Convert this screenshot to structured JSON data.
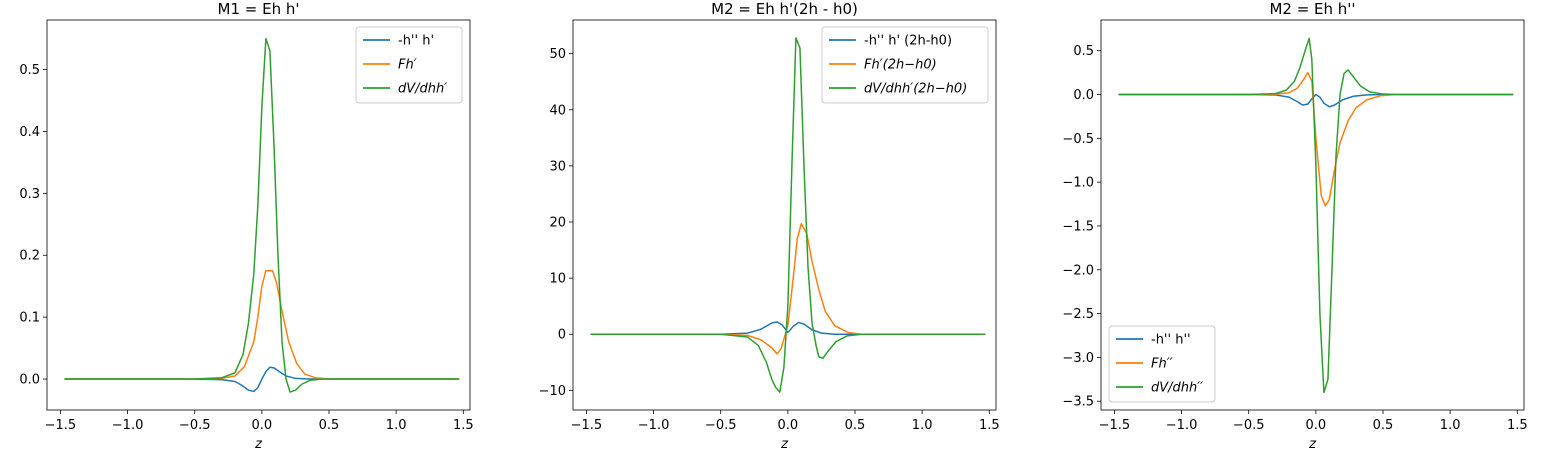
{
  "chart_data": [
    {
      "type": "line",
      "title": "M1 = Eh h'",
      "xlabel": "z",
      "ylabel": "",
      "xlim": [
        -1.6,
        1.55
      ],
      "ylim": [
        -0.05,
        0.58
      ],
      "xticks": [
        -1.5,
        -1.0,
        -0.5,
        0.0,
        0.5,
        1.0,
        1.5
      ],
      "xtick_labels": [
        "−1.5",
        "−1.0",
        "−0.5",
        "0.0",
        "0.5",
        "1.0",
        "1.5"
      ],
      "yticks": [
        0.0,
        0.1,
        0.2,
        0.3,
        0.4,
        0.5
      ],
      "ytick_labels": [
        "0.0",
        "0.1",
        "0.2",
        "0.3",
        "0.4",
        "0.5"
      ],
      "legend_position": "top-right",
      "series": [
        {
          "name": "-h'' h'",
          "italic": false,
          "color": "#1f77b4",
          "points": [
            [
              -1.47,
              0
            ],
            [
              -0.6,
              0
            ],
            [
              -0.3,
              -0.001
            ],
            [
              -0.2,
              -0.004
            ],
            [
              -0.15,
              -0.01
            ],
            [
              -0.1,
              -0.018
            ],
            [
              -0.06,
              -0.02
            ],
            [
              -0.03,
              -0.014
            ],
            [
              0.0,
              0.0
            ],
            [
              0.03,
              0.012
            ],
            [
              0.06,
              0.019
            ],
            [
              0.09,
              0.018
            ],
            [
              0.13,
              0.012
            ],
            [
              0.18,
              0.005
            ],
            [
              0.25,
              0.001
            ],
            [
              0.35,
              0
            ],
            [
              1.47,
              0
            ]
          ]
        },
        {
          "name": "Fh′",
          "italic": true,
          "color": "#ff7f0e",
          "points": [
            [
              -1.47,
              0
            ],
            [
              -0.5,
              0
            ],
            [
              -0.3,
              0.001
            ],
            [
              -0.2,
              0.005
            ],
            [
              -0.13,
              0.02
            ],
            [
              -0.06,
              0.06
            ],
            [
              -0.03,
              0.1
            ],
            [
              0.0,
              0.15
            ],
            [
              0.03,
              0.175
            ],
            [
              0.08,
              0.175
            ],
            [
              0.11,
              0.155
            ],
            [
              0.15,
              0.11
            ],
            [
              0.2,
              0.06
            ],
            [
              0.26,
              0.025
            ],
            [
              0.32,
              0.008
            ],
            [
              0.4,
              0.002
            ],
            [
              0.5,
              0
            ],
            [
              1.47,
              0
            ]
          ]
        },
        {
          "name": "dV/dhh′",
          "italic": true,
          "color": "#2ca02c",
          "points": [
            [
              -1.47,
              0
            ],
            [
              -0.5,
              0
            ],
            [
              -0.3,
              0.002
            ],
            [
              -0.2,
              0.01
            ],
            [
              -0.14,
              0.04
            ],
            [
              -0.1,
              0.09
            ],
            [
              -0.06,
              0.17
            ],
            [
              -0.03,
              0.28
            ],
            [
              0.0,
              0.44
            ],
            [
              0.03,
              0.55
            ],
            [
              0.06,
              0.53
            ],
            [
              0.09,
              0.38
            ],
            [
              0.12,
              0.2
            ],
            [
              0.15,
              0.06
            ],
            [
              0.18,
              0.0
            ],
            [
              0.21,
              -0.021
            ],
            [
              0.25,
              -0.018
            ],
            [
              0.3,
              -0.008
            ],
            [
              0.36,
              -0.002
            ],
            [
              0.45,
              0
            ],
            [
              1.47,
              0
            ]
          ]
        }
      ]
    },
    {
      "type": "line",
      "title": "M2 = Eh h'(2h - h0)",
      "xlabel": "z",
      "ylabel": "",
      "xlim": [
        -1.6,
        1.55
      ],
      "ylim": [
        -13.5,
        56
      ],
      "xticks": [
        -1.5,
        -1.0,
        -0.5,
        0.0,
        0.5,
        1.0,
        1.5
      ],
      "xtick_labels": [
        "−1.5",
        "−1.0",
        "−0.5",
        "0.0",
        "0.5",
        "1.0",
        "1.5"
      ],
      "yticks": [
        -10,
        0,
        10,
        20,
        30,
        40,
        50
      ],
      "ytick_labels": [
        "−10",
        "0",
        "10",
        "20",
        "30",
        "40",
        "50"
      ],
      "legend_position": "top-right",
      "series": [
        {
          "name": "-h'' h' (2h-h0)",
          "italic": false,
          "color": "#1f77b4",
          "points": [
            [
              -1.47,
              0
            ],
            [
              -0.5,
              0
            ],
            [
              -0.3,
              0.2
            ],
            [
              -0.2,
              0.9
            ],
            [
              -0.12,
              2.0
            ],
            [
              -0.08,
              2.2
            ],
            [
              -0.04,
              1.6
            ],
            [
              0.0,
              0.3
            ],
            [
              0.04,
              1.4
            ],
            [
              0.08,
              2.1
            ],
            [
              0.12,
              1.8
            ],
            [
              0.18,
              0.8
            ],
            [
              0.25,
              0.2
            ],
            [
              0.35,
              0
            ],
            [
              1.47,
              0
            ]
          ]
        },
        {
          "name": "Fh′(2h−h0)",
          "italic": true,
          "color": "#ff7f0e",
          "points": [
            [
              -1.47,
              0
            ],
            [
              -0.5,
              0
            ],
            [
              -0.3,
              -0.2
            ],
            [
              -0.2,
              -1.0
            ],
            [
              -0.12,
              -2.4
            ],
            [
              -0.08,
              -3.5
            ],
            [
              -0.05,
              -2.5
            ],
            [
              0.0,
              1.5
            ],
            [
              0.04,
              10
            ],
            [
              0.07,
              17
            ],
            [
              0.1,
              19.7
            ],
            [
              0.14,
              18
            ],
            [
              0.18,
              13
            ],
            [
              0.23,
              8
            ],
            [
              0.28,
              4
            ],
            [
              0.35,
              1.5
            ],
            [
              0.45,
              0.3
            ],
            [
              0.55,
              0
            ],
            [
              1.47,
              0
            ]
          ]
        },
        {
          "name": "dV/dhh′(2h−h0)",
          "italic": true,
          "color": "#2ca02c",
          "points": [
            [
              -1.47,
              0
            ],
            [
              -0.5,
              0
            ],
            [
              -0.3,
              -0.5
            ],
            [
              -0.22,
              -2
            ],
            [
              -0.16,
              -5
            ],
            [
              -0.12,
              -8
            ],
            [
              -0.09,
              -9.5
            ],
            [
              -0.06,
              -10.3
            ],
            [
              -0.03,
              -6
            ],
            [
              0.0,
              5
            ],
            [
              0.03,
              30
            ],
            [
              0.06,
              52.8
            ],
            [
              0.09,
              51
            ],
            [
              0.12,
              30
            ],
            [
              0.15,
              12
            ],
            [
              0.18,
              2
            ],
            [
              0.21,
              -2
            ],
            [
              0.23,
              -4
            ],
            [
              0.26,
              -4.3
            ],
            [
              0.3,
              -3
            ],
            [
              0.36,
              -1.3
            ],
            [
              0.44,
              -0.3
            ],
            [
              0.55,
              0
            ],
            [
              1.47,
              0
            ]
          ]
        }
      ]
    },
    {
      "type": "line",
      "title": "M2 = Eh h''",
      "xlabel": "z",
      "ylabel": "",
      "xlim": [
        -1.6,
        1.55
      ],
      "ylim": [
        -3.6,
        0.85
      ],
      "xticks": [
        -1.5,
        -1.0,
        -0.5,
        0.0,
        0.5,
        1.0,
        1.5
      ],
      "xtick_labels": [
        "−1.5",
        "−1.0",
        "−0.5",
        "0.0",
        "0.5",
        "1.0",
        "1.5"
      ],
      "yticks": [
        -3.5,
        -3.0,
        -2.5,
        -2.0,
        -1.5,
        -1.0,
        -0.5,
        0.0,
        0.5
      ],
      "ytick_labels": [
        "−3.5",
        "−3.0",
        "−2.5",
        "−2.0",
        "−1.5",
        "−1.0",
        "−0.5",
        "0.0",
        "0.5"
      ],
      "legend_position": "bottom-left",
      "series": [
        {
          "name": "-h'' h''",
          "italic": false,
          "color": "#1f77b4",
          "points": [
            [
              -1.47,
              0
            ],
            [
              -0.5,
              0
            ],
            [
              -0.3,
              -0.005
            ],
            [
              -0.2,
              -0.03
            ],
            [
              -0.14,
              -0.08
            ],
            [
              -0.1,
              -0.12
            ],
            [
              -0.06,
              -0.11
            ],
            [
              -0.03,
              -0.05
            ],
            [
              0.0,
              0.0
            ],
            [
              0.03,
              -0.03
            ],
            [
              0.06,
              -0.1
            ],
            [
              0.1,
              -0.14
            ],
            [
              0.14,
              -0.12
            ],
            [
              0.2,
              -0.06
            ],
            [
              0.28,
              -0.02
            ],
            [
              0.38,
              -0.004
            ],
            [
              0.5,
              0
            ],
            [
              1.47,
              0
            ]
          ]
        },
        {
          "name": "Fh′′",
          "italic": true,
          "color": "#ff7f0e",
          "points": [
            [
              -1.47,
              0
            ],
            [
              -0.5,
              0
            ],
            [
              -0.3,
              0.003
            ],
            [
              -0.2,
              0.02
            ],
            [
              -0.14,
              0.07
            ],
            [
              -0.1,
              0.15
            ],
            [
              -0.06,
              0.25
            ],
            [
              -0.03,
              0.15
            ],
            [
              0.0,
              -0.5
            ],
            [
              0.04,
              -1.15
            ],
            [
              0.07,
              -1.27
            ],
            [
              0.1,
              -1.2
            ],
            [
              0.14,
              -0.85
            ],
            [
              0.18,
              -0.55
            ],
            [
              0.24,
              -0.3
            ],
            [
              0.3,
              -0.15
            ],
            [
              0.38,
              -0.06
            ],
            [
              0.48,
              -0.015
            ],
            [
              0.6,
              0
            ],
            [
              1.47,
              0
            ]
          ]
        },
        {
          "name": "dV/dhh′′",
          "italic": true,
          "color": "#2ca02c",
          "points": [
            [
              -1.47,
              0
            ],
            [
              -0.5,
              0
            ],
            [
              -0.3,
              0.01
            ],
            [
              -0.22,
              0.05
            ],
            [
              -0.16,
              0.15
            ],
            [
              -0.12,
              0.3
            ],
            [
              -0.08,
              0.5
            ],
            [
              -0.05,
              0.64
            ],
            [
              -0.03,
              0.4
            ],
            [
              0.0,
              -0.8
            ],
            [
              0.03,
              -2.5
            ],
            [
              0.06,
              -3.4
            ],
            [
              0.09,
              -3.25
            ],
            [
              0.12,
              -2.0
            ],
            [
              0.15,
              -0.7
            ],
            [
              0.18,
              0.0
            ],
            [
              0.21,
              0.24
            ],
            [
              0.24,
              0.28
            ],
            [
              0.28,
              0.2
            ],
            [
              0.33,
              0.1
            ],
            [
              0.4,
              0.03
            ],
            [
              0.5,
              0.005
            ],
            [
              0.6,
              0
            ],
            [
              1.47,
              0
            ]
          ]
        }
      ]
    }
  ]
}
